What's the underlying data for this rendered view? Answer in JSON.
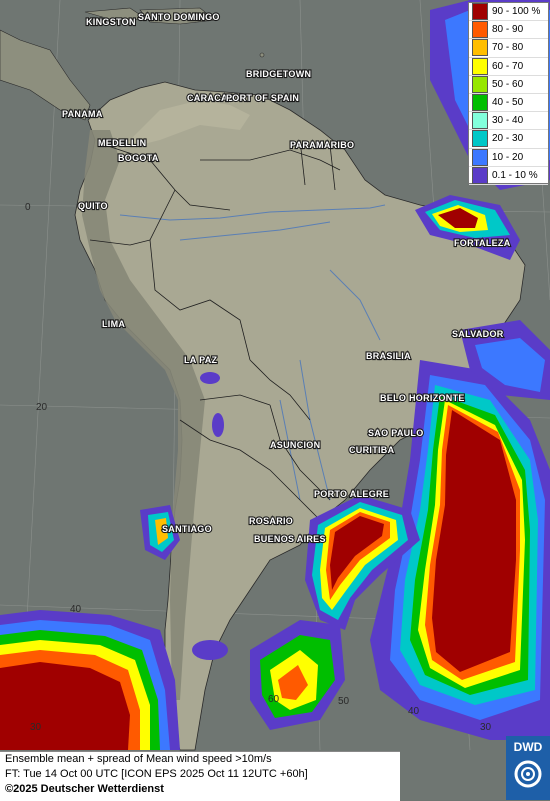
{
  "legend": {
    "items": [
      {
        "label": "90 - 100 %",
        "color": "#a00000"
      },
      {
        "label": "80 - 90",
        "color": "#ff5a00"
      },
      {
        "label": "70 - 80",
        "color": "#ffbe00"
      },
      {
        "label": "60 - 70",
        "color": "#ffff00"
      },
      {
        "label": "50 - 60",
        "color": "#96e600"
      },
      {
        "label": "40 - 50",
        "color": "#00be00"
      },
      {
        "label": "30 - 40",
        "color": "#82ffdc"
      },
      {
        "label": "20 - 30",
        "color": "#00c8c8"
      },
      {
        "label": "10 - 20",
        "color": "#3c78ff"
      },
      {
        "label": "0.1 - 10 %",
        "color": "#5a3cc8"
      }
    ]
  },
  "cities": {
    "kingston": "KINGSTON",
    "santo_domingo": "SANTO DOMINGO",
    "bridgetown": "BRIDGETOWN",
    "caracas": "CARACAS",
    "port_of_spain": "PORT OF SPAIN",
    "panama": "PANAMA",
    "medellin": "MEDELLIN",
    "bogota": "BOGOTA",
    "paramaribo": "PARAMARIBO",
    "quito": "QUITO",
    "fortaleza": "FORTALEZA",
    "lima": "LIMA",
    "salvador": "SALVADOR",
    "brasilia": "BRASILIA",
    "la_paz": "LA PAZ",
    "belo_horizonte": "BELO HORIZONTE",
    "sao_paulo": "SAO PAULO",
    "asuncion": "ASUNCION",
    "curitiba": "CURITIBA",
    "porto_alegre": "PORTO ALEGRE",
    "santiago": "SANTIAGO",
    "rosario": "ROSARIO",
    "buenos_aires": "BUENOS AIRES"
  },
  "grid_labels": {
    "lat0": "0",
    "lat20": "20",
    "lat40": "40",
    "lat60": "60",
    "lon50": "50",
    "lon40": "40",
    "lon30": "30",
    "lat30w": "30"
  },
  "footer": {
    "line1": "Ensemble mean + spread of Mean wind speed >10m/s",
    "line2": "FT: Tue 14 Oct 00 UTC [ICON EPS 2025 Oct 11 12UTC +60h]",
    "line3": "©2025 Deutscher Wetterdienst"
  },
  "logo": {
    "text": "DWD"
  }
}
